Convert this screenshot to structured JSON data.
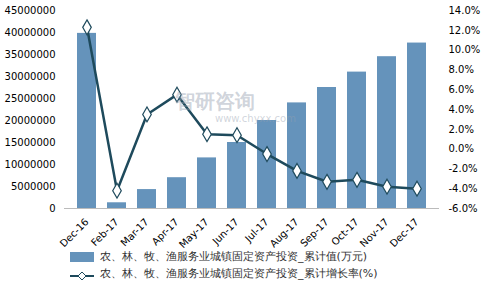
{
  "chart_data": {
    "type": "bar",
    "categories": [
      "Dec-16",
      "Feb-17",
      "Mar-17",
      "Apr-17",
      "May-17",
      "Jun-17",
      "Jul-17",
      "Aug-17",
      "Sep-17",
      "Oct-17",
      "Nov-17",
      "Dec-17"
    ],
    "series": [
      {
        "name": "农、林、牧、渔服务业城镇固定资产投资_累计值(万元)",
        "type": "bar",
        "color": "#6593bb",
        "values": [
          39800000,
          1300000,
          4300000,
          7000000,
          11500000,
          15000000,
          20000000,
          24000000,
          27500000,
          31000000,
          34500000,
          37600000
        ]
      },
      {
        "name": "农、林、牧、渔服务业城镇固定资产投资_累计增长率(%)",
        "type": "line",
        "axis": "y2",
        "color": "#1e4a5c",
        "marker": "diamond",
        "values": [
          12.3,
          -4.2,
          3.5,
          5.5,
          1.5,
          1.4,
          -0.5,
          -2.2,
          -3.3,
          -3.1,
          -3.8,
          -4.0
        ]
      }
    ],
    "ylim": [
      0,
      45000000
    ],
    "yticks": [
      0,
      5000000,
      10000000,
      15000000,
      20000000,
      25000000,
      30000000,
      35000000,
      40000000,
      45000000
    ],
    "y2lim": [
      -6,
      14
    ],
    "y2ticks": [
      {
        "value": -6,
        "label": "-6.0%"
      },
      {
        "value": -4,
        "label": "-4.0%"
      },
      {
        "value": -2,
        "label": "-2.0%"
      },
      {
        "value": 0,
        "label": "0.0%"
      },
      {
        "value": 2,
        "label": "2.0%"
      },
      {
        "value": 4,
        "label": "4.0%"
      },
      {
        "value": 6,
        "label": "6.0%"
      },
      {
        "value": 8,
        "label": "8.0%"
      },
      {
        "value": 10,
        "label": "10.0%"
      },
      {
        "value": 12,
        "label": "12.0%"
      },
      {
        "value": 14,
        "label": "14.0%"
      }
    ],
    "annotations": [
      "智研咨询",
      "www.chyxx.com"
    ]
  }
}
